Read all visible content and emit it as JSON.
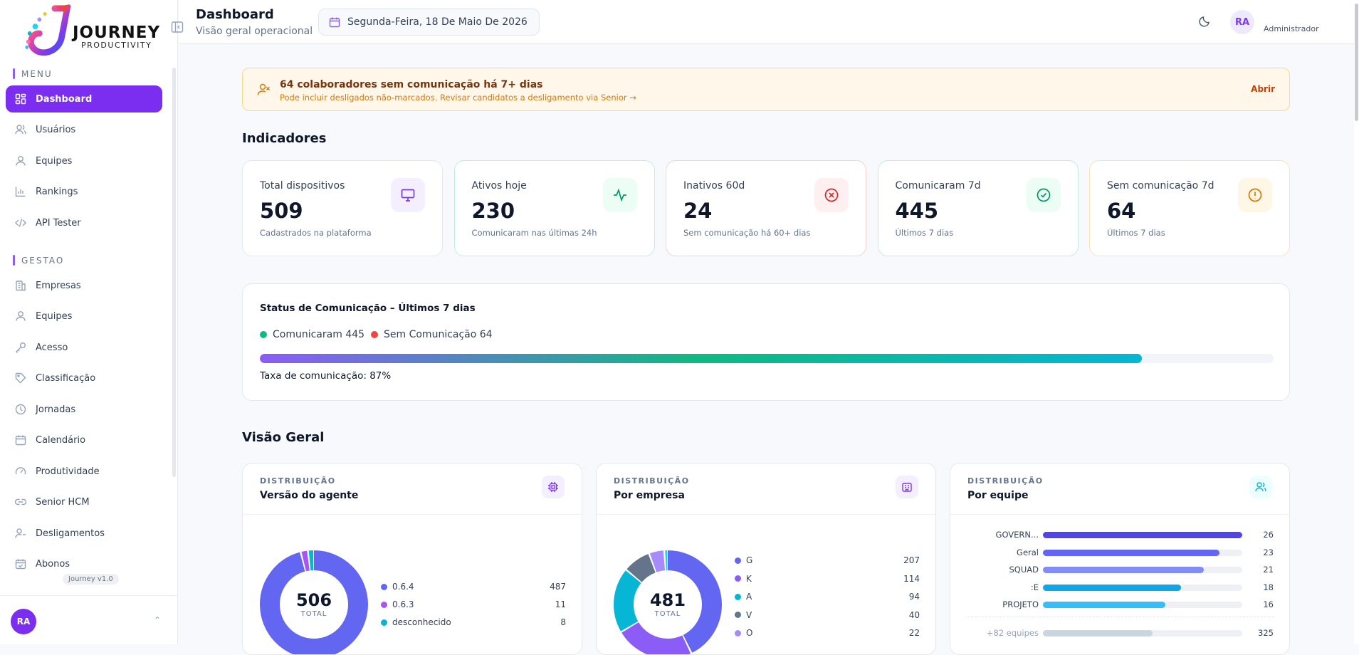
{
  "app": {
    "logo_title": "JOURNEY",
    "logo_subtitle": "PRODUCTIVITY",
    "version": "Journey v1.0"
  },
  "sidebar": {
    "menu_label": "MENU",
    "menu_items": [
      {
        "label": "Dashboard",
        "icon": "grid-icon",
        "active": true
      },
      {
        "label": "Usuários",
        "icon": "users-icon"
      },
      {
        "label": "Equipes",
        "icon": "user-icon"
      },
      {
        "label": "Rankings",
        "icon": "bar-chart-icon"
      },
      {
        "label": "API Tester",
        "icon": "code-icon"
      }
    ],
    "gestao_label": "GESTAO",
    "gestao_items": [
      {
        "label": "Empresas",
        "icon": "building-icon"
      },
      {
        "label": "Equipes",
        "icon": "user-icon"
      },
      {
        "label": "Acesso",
        "icon": "key-icon"
      },
      {
        "label": "Classificação",
        "icon": "tag-icon"
      },
      {
        "label": "Jornadas",
        "icon": "clock-icon"
      },
      {
        "label": "Calendário",
        "icon": "calendar-icon"
      },
      {
        "label": "Produtividade",
        "icon": "gauge-icon"
      },
      {
        "label": "Senior HCM",
        "icon": "link-icon"
      },
      {
        "label": "Desligamentos",
        "icon": "user-x-icon"
      },
      {
        "label": "Abonos",
        "icon": "calendar-check-icon"
      }
    ],
    "user_initials": "RA"
  },
  "header": {
    "title": "Dashboard",
    "subtitle": "Visão geral operacional",
    "date": "Segunda-Feira, 18 De Maio De 2026",
    "avatar_initials": "RA",
    "role": "Administrador"
  },
  "alert": {
    "title": "64 colaboradores sem comunicação há 7+ dias",
    "text": "Pode incluir desligados não-marcados. Revisar candidatos a desligamento via Senior →",
    "action": "Abrir"
  },
  "indicators": {
    "title": "Indicadores",
    "cards": [
      {
        "label": "Total dispositivos",
        "value": "509",
        "note": "Cadastrados na plataforma",
        "icon": "monitor-icon",
        "color": "#7c3aed",
        "bg": "#f3efff",
        "border": "#e5e7eb"
      },
      {
        "label": "Ativos hoje",
        "value": "230",
        "note": "Comunicaram nas últimas 24h",
        "icon": "activity-icon",
        "color": "#059669",
        "bg": "#ecfdf5",
        "border": "#bfeee0"
      },
      {
        "label": "Inativos 60d",
        "value": "24",
        "note": "Sem comunicação há 60+ dias",
        "icon": "x-circle-icon",
        "color": "#dc2626",
        "bg": "#fef0f0",
        "border": "#f8d0d0"
      },
      {
        "label": "Comunicaram 7d",
        "value": "445",
        "note": "Últimos 7 dias",
        "icon": "check-circle-icon",
        "color": "#059669",
        "bg": "#ecfdf5",
        "border": "#bfeee0"
      },
      {
        "label": "Sem comunicação 7d",
        "value": "64",
        "note": "Últimos 7 dias",
        "icon": "alert-circle-icon",
        "color": "#d97706",
        "bg": "#fff7e6",
        "border": "#fbe3b4"
      }
    ]
  },
  "status": {
    "title": "Status de Comunicação – Últimos 7 dias",
    "legend_ok": "Comunicaram 445",
    "legend_bad": "Sem Comunicação 64",
    "ok_color": "#10b981",
    "bad_color": "#ef4444",
    "rate_value": 0.87,
    "rate_text": "Taxa de comunicação: 87%"
  },
  "overview": {
    "title": "Visão Geral",
    "agent": {
      "kicker": "DISTRIBUIÇÃO",
      "title": "Versão do agente",
      "icon": "cpu-icon",
      "total": "506",
      "total_label": "TOTAL",
      "items": [
        {
          "label": "0.6.4",
          "value": 487,
          "color": "#6366f1"
        },
        {
          "label": "0.6.3",
          "value": 11,
          "color": "#a855f7"
        },
        {
          "label": "desconhecido",
          "value": 8,
          "color": "#06b6d4"
        }
      ]
    },
    "company": {
      "kicker": "DISTRIBUIÇÃO",
      "title": "Por empresa",
      "icon": "building-icon",
      "total": "481",
      "total_label": "TOTAL",
      "items": [
        {
          "label": "G",
          "value": 207,
          "color": "#6366f1"
        },
        {
          "label": "K",
          "value": 114,
          "color": "#8b5cf6"
        },
        {
          "label": "A",
          "value": 94,
          "color": "#06b6d4"
        },
        {
          "label": "V",
          "value": 40,
          "color": "#64748b"
        },
        {
          "label": "O",
          "value": 22,
          "color": "#a78bfa"
        },
        {
          "label": "",
          "value": 4,
          "color": "#22d3ee"
        }
      ]
    },
    "team": {
      "kicker": "DISTRIBUIÇÃO",
      "title": "Por equipe",
      "icon": "users-icon",
      "items": [
        {
          "label": "GOVERN...",
          "value": 26,
          "color": "#4f46e5"
        },
        {
          "label": "Geral",
          "value": 23,
          "color": "#6366f1"
        },
        {
          "label": "SQUAD",
          "value": 21,
          "color": "#818cf8"
        },
        {
          "label": ":E",
          "value": 18,
          "color": "#0ea5e9"
        },
        {
          "label": "PROJETO",
          "value": 16,
          "color": "#38bdf8"
        }
      ],
      "more_label": "+82 equipes",
      "more_value": 325,
      "more_color": "#cbd5e1"
    }
  }
}
